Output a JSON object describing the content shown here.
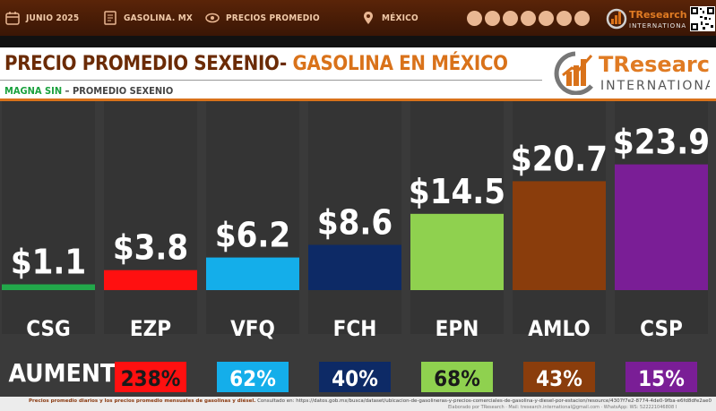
{
  "header": {
    "items": [
      {
        "label": "JUNIO 2025",
        "icon": "calendar-icon"
      },
      {
        "label": "GASOLINA. MX",
        "icon": "document-icon"
      },
      {
        "label": "PRECIOS PROMEDIO",
        "icon": "eye-icon"
      },
      {
        "label": "MÉXICO",
        "icon": "map-pin-icon"
      }
    ],
    "social_icons": [
      "globe-icon",
      "phone-icon",
      "email-icon",
      "twitter-icon",
      "facebook-icon",
      "linkedin-icon",
      "youtube-icon"
    ],
    "mini_logo": {
      "brand": "TResearch",
      "sub": "INTERNATIONAL"
    }
  },
  "title": {
    "main": "PRECIO PROMEDIO SEXENIO-",
    "accent": "GASOLINA EN MÉXICO",
    "sub_green": "MAGNA SIN",
    "sub_rest": " – PROMEDIO SEXENIO"
  },
  "logo": {
    "brand": "TResearch",
    "sub": "INTERNATIONAL"
  },
  "chart_data": {
    "type": "bar",
    "categories": [
      "CSG",
      "EZP",
      "VFQ",
      "FCH",
      "EPN",
      "AMLO",
      "CSP"
    ],
    "values": [
      1.1,
      3.8,
      6.2,
      8.6,
      14.5,
      20.7,
      23.9
    ],
    "value_labels": [
      "$1.1",
      "$3.8",
      "$6.2",
      "$8.6",
      "$14.5",
      "$20.7",
      "$23.9"
    ],
    "colors": [
      "#22a84a",
      "#ff1010",
      "#14aeea",
      "#0d2a66",
      "#8fd14f",
      "#8a3d0c",
      "#7a1e96"
    ],
    "increase_label": "AUMENTO",
    "increases": [
      "238%",
      "62%",
      "40%",
      "68%",
      "43%",
      "15%"
    ],
    "ylim": [
      0,
      24
    ],
    "grid": false
  },
  "footer": {
    "source_bold": "Precios promedio diarios y los precios promedio mensuales de gasolinas y diésel.",
    "source_rest": " Consultado en: https://datos.gob.mx/busca/dataset/ubicacion-de-gasolineras-y-precios-comerciales-de-gasolina-y-diesel-por-estacion/resource/4307f7e2-8774-4de0-9fba-e6fd8dfe2ae0",
    "source_line2": "Elaborado por TResearch · Mail: tresearch.international@gmail.com · WhatsApp: WS: 522221046808 I"
  }
}
